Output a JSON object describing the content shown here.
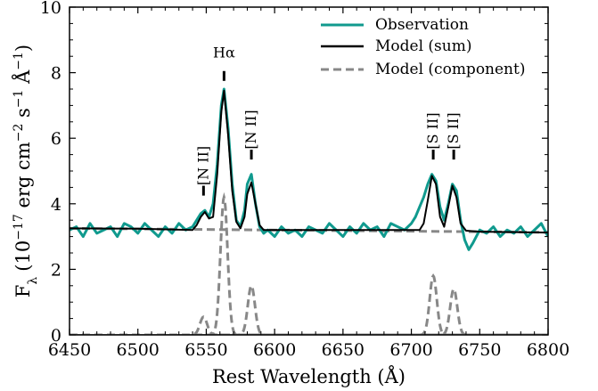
{
  "chart_data": {
    "type": "line",
    "title": "",
    "xlabel": "Rest Wavelength (Å)",
    "ylabel_base": "F",
    "ylabel_sub": "λ",
    "ylabel_units": "(10",
    "ylabel_exp1": "−17",
    "ylabel_mid": " erg cm",
    "ylabel_exp2": "−2",
    "ylabel_mid2": " s",
    "ylabel_exp3": "−1",
    "ylabel_mid3": " Å",
    "ylabel_exp4": "−1",
    "ylabel_end": ")",
    "xlim": [
      6450,
      6800
    ],
    "ylim": [
      0,
      10
    ],
    "x_ticks": [
      6450,
      6500,
      6550,
      6600,
      6650,
      6700,
      6750,
      6800
    ],
    "y_ticks": [
      0,
      2,
      4,
      6,
      8,
      10
    ],
    "grid": false,
    "legend_position": "top-right",
    "colors": {
      "observation": "#109a8e",
      "model_sum": "#000000",
      "model_component": "#888888",
      "zero_line": "#999999"
    },
    "series": [
      {
        "name": "Observation",
        "style": "solid",
        "x": [
          6450,
          6455,
          6460,
          6465,
          6470,
          6475,
          6480,
          6485,
          6490,
          6495,
          6500,
          6505,
          6510,
          6515,
          6520,
          6525,
          6530,
          6535,
          6540,
          6543,
          6546,
          6549,
          6552,
          6555,
          6558,
          6561,
          6563,
          6566,
          6569,
          6572,
          6575,
          6578,
          6580,
          6583,
          6586,
          6589,
          6592,
          6595,
          6600,
          6605,
          6610,
          6615,
          6620,
          6625,
          6630,
          6635,
          6640,
          6645,
          6650,
          6655,
          6660,
          6665,
          6670,
          6675,
          6680,
          6685,
          6690,
          6695,
          6700,
          6703,
          6706,
          6709,
          6712,
          6715,
          6718,
          6721,
          6724,
          6727,
          6730,
          6733,
          6736,
          6739,
          6742,
          6745,
          6750,
          6755,
          6760,
          6765,
          6770,
          6775,
          6780,
          6785,
          6790,
          6795,
          6800
        ],
        "y": [
          3.2,
          3.3,
          3.0,
          3.4,
          3.1,
          3.2,
          3.3,
          3.0,
          3.4,
          3.3,
          3.1,
          3.4,
          3.2,
          3.0,
          3.3,
          3.1,
          3.4,
          3.2,
          3.3,
          3.5,
          3.7,
          3.8,
          3.6,
          4.0,
          5.2,
          7.0,
          7.5,
          6.3,
          4.6,
          3.5,
          3.3,
          3.8,
          4.6,
          4.9,
          4.0,
          3.3,
          3.1,
          3.2,
          3.0,
          3.3,
          3.1,
          3.2,
          3.0,
          3.3,
          3.2,
          3.1,
          3.4,
          3.2,
          3.0,
          3.3,
          3.1,
          3.4,
          3.2,
          3.3,
          3.0,
          3.4,
          3.3,
          3.2,
          3.4,
          3.6,
          3.9,
          4.2,
          4.6,
          4.9,
          4.7,
          3.9,
          3.5,
          4.0,
          4.6,
          4.4,
          3.5,
          2.9,
          2.6,
          2.8,
          3.2,
          3.1,
          3.3,
          3.0,
          3.2,
          3.1,
          3.3,
          3.0,
          3.2,
          3.4,
          3.0
        ]
      },
      {
        "name": "Model (sum)",
        "style": "solid",
        "x": [
          6450,
          6500,
          6540,
          6543,
          6546,
          6549,
          6552,
          6555,
          6558,
          6561,
          6563,
          6566,
          6569,
          6572,
          6575,
          6578,
          6580,
          6583,
          6586,
          6589,
          6592,
          6600,
          6650,
          6700,
          6706,
          6709,
          6712,
          6715,
          6718,
          6721,
          6724,
          6727,
          6730,
          6733,
          6736,
          6740,
          6750,
          6800
        ],
        "y": [
          3.25,
          3.24,
          3.2,
          3.35,
          3.6,
          3.75,
          3.55,
          3.6,
          4.9,
          6.8,
          7.45,
          6.1,
          4.4,
          3.45,
          3.25,
          3.6,
          4.3,
          4.65,
          4.0,
          3.35,
          3.2,
          3.2,
          3.2,
          3.2,
          3.2,
          3.4,
          4.1,
          4.85,
          4.6,
          3.6,
          3.3,
          3.9,
          4.55,
          4.2,
          3.4,
          3.18,
          3.15,
          3.12
        ]
      },
      {
        "name": "Model (component)",
        "style": "dashed",
        "x": [
          6450,
          6800
        ],
        "y": [
          3.25,
          3.13
        ]
      }
    ],
    "component_peaks": [
      {
        "center": 6548,
        "amp": 0.55,
        "sigma": 2.6
      },
      {
        "center": 6563,
        "amp": 4.2,
        "sigma": 2.6
      },
      {
        "center": 6583,
        "amp": 1.5,
        "sigma": 2.6
      },
      {
        "center": 6716,
        "amp": 1.8,
        "sigma": 2.6
      },
      {
        "center": 6731,
        "amp": 1.4,
        "sigma": 2.6
      }
    ],
    "annotations": [
      {
        "text": "[N II]",
        "x": 6548,
        "y": 4.4,
        "rotate": true
      },
      {
        "text": "Hα",
        "x": 6563,
        "y": 8.3,
        "rotate": false
      },
      {
        "text": "[N II]",
        "x": 6583,
        "y": 5.5,
        "rotate": true
      },
      {
        "text": "[S II]",
        "x": 6716,
        "y": 5.5,
        "rotate": true
      },
      {
        "text": "[S II]",
        "x": 6731,
        "y": 5.5,
        "rotate": true
      }
    ],
    "annotation_markers": [
      {
        "x": 6548,
        "y0": 4.25,
        "y1": 4.55
      },
      {
        "x": 6563,
        "y0": 7.75,
        "y1": 8.05
      },
      {
        "x": 6583,
        "y0": 5.35,
        "y1": 5.65
      },
      {
        "x": 6716,
        "y0": 5.35,
        "y1": 5.65
      },
      {
        "x": 6731,
        "y0": 5.35,
        "y1": 5.65
      }
    ]
  }
}
